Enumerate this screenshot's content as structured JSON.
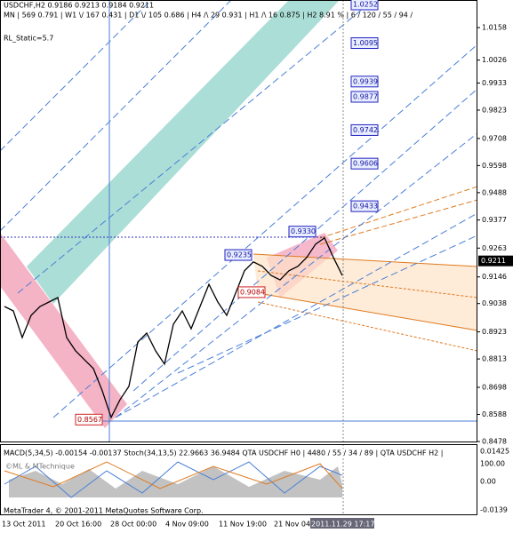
{
  "header": {
    "symbol_line": "USDCHF,H2  0.9186 0.9213 0.9184 0.9211",
    "timeframes_line": "MN | 569   0.791 | W1 \\/ 167   0.431 | D1 \\/ 105   0.686 | H4 /\\ 29   0.931 | H1 /\\ 16   0.875 | H2  8.91 % | 6 / 120 / 55 / 94 /",
    "static": "RL_Static=5.7"
  },
  "chart_data": {
    "type": "line",
    "color": "#000000",
    "values": [
      0.9026,
      0.9008,
      0.89,
      0.899,
      0.9026,
      0.9044,
      0.9062,
      0.89,
      0.8846,
      0.881,
      0.8774,
      0.8684,
      0.8576,
      0.8648,
      0.8702,
      0.8882,
      0.8918,
      0.8846,
      0.8792,
      0.8954,
      0.9008,
      0.8936,
      0.9026,
      0.9116,
      0.9044,
      0.899,
      0.908,
      0.9171,
      0.9207,
      0.9189,
      0.9152,
      0.9134,
      0.9171,
      0.9189,
      0.9225,
      0.9279,
      0.9304,
      0.9225,
      0.9152
    ],
    "ylim": [
      0.8478,
      1.027
    ],
    "yticks": [
      1.0158,
      1.0026,
      0.9933,
      0.9823,
      0.9708,
      0.9598,
      0.9488,
      0.9377,
      0.9263,
      0.9146,
      0.9038,
      0.8923,
      0.8813,
      0.8698,
      0.8588,
      0.8478
    ],
    "current_price": 0.9211,
    "levels": [
      {
        "value": 1.0252,
        "label": "1.0252"
      },
      {
        "value": 1.0095,
        "label": "1.0095"
      },
      {
        "value": 0.9939,
        "label": "0.9939"
      },
      {
        "value": 0.9877,
        "label": "0.9877"
      },
      {
        "value": 0.9742,
        "label": "0.9742"
      },
      {
        "value": 0.9606,
        "label": "0.9606"
      },
      {
        "value": 0.9433,
        "label": "0.9433"
      },
      {
        "value": 0.933,
        "label": "0.9330"
      },
      {
        "value": 0.9235,
        "label": "0.9235"
      },
      {
        "value": 0.9084,
        "label": "0.9084"
      },
      {
        "value": 0.8567,
        "label": "0.8567"
      }
    ],
    "time_labels": [
      "13 Oct 2011",
      "20 Oct 16:00",
      "28 Oct 00:00",
      "4 Nov 09:00",
      "11 Nov 19:00",
      "21 Nov 04:00",
      "2011.11.29 17:17"
    ]
  },
  "indicator": {
    "legend": "MACD(5,34,5) -0.00154 -0.00137   Stoch(34,13,5) 22.9663 36.9484   QTA USDCHF H0 | 4480 / 55 / 34 / 89 | QTA USDCHF H2 |",
    "axis_labels": [
      "0.01425",
      "100.00",
      "0.00",
      "-0.0139"
    ],
    "watermark": "©ML & MTechnique",
    "copyright": "MetaTrader 4, © 2001-2011 MetaQuotes Software Corp."
  }
}
